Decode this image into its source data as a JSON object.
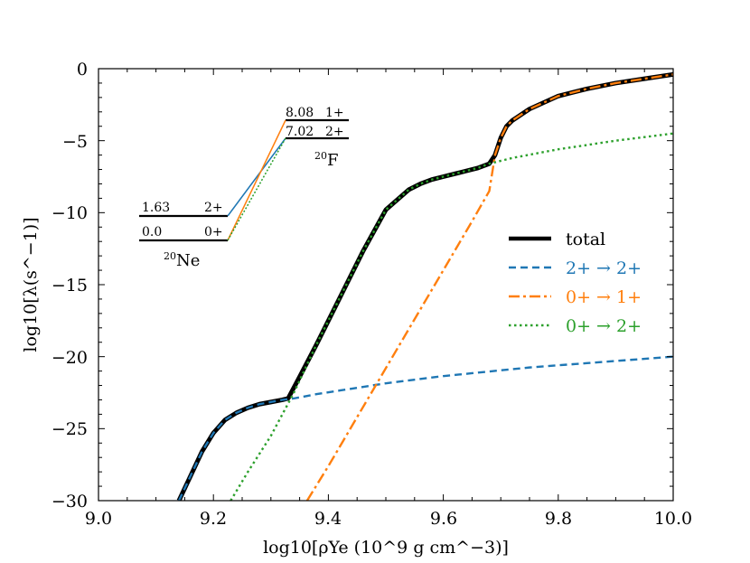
{
  "chart_data": {
    "type": "line",
    "xlabel": "log10[ρYe (10^9 g cm^−3)]",
    "ylabel": "log10[λ(s^−1)]",
    "xlim": [
      9.0,
      10.0
    ],
    "ylim": [
      -30,
      0
    ],
    "xticks": [
      "9.0",
      "9.2",
      "9.4",
      "9.6",
      "9.8",
      "10.0"
    ],
    "yticks": [
      "0",
      "−5",
      "−10",
      "−15",
      "−20",
      "−25",
      "−30"
    ],
    "grid": false,
    "legend_position": "center-right",
    "series": [
      {
        "name": "total",
        "color": "#000000",
        "style": "solid",
        "x": [
          9.14,
          9.16,
          9.18,
          9.2,
          9.22,
          9.24,
          9.26,
          9.28,
          9.3,
          9.32,
          9.33,
          9.35,
          9.38,
          9.42,
          9.46,
          9.5,
          9.54,
          9.56,
          9.58,
          9.6,
          9.62,
          9.64,
          9.66,
          9.68,
          9.69,
          9.7,
          9.71,
          9.72,
          9.75,
          9.8,
          9.85,
          9.9,
          9.95,
          10.0
        ],
        "y": [
          -30.0,
          -28.3,
          -26.6,
          -25.3,
          -24.4,
          -23.9,
          -23.55,
          -23.3,
          -23.15,
          -23.0,
          -22.9,
          -21.4,
          -19.1,
          -15.9,
          -12.7,
          -9.8,
          -8.4,
          -8.0,
          -7.7,
          -7.5,
          -7.3,
          -7.1,
          -6.9,
          -6.6,
          -6.0,
          -4.8,
          -4.0,
          -3.6,
          -2.8,
          -1.9,
          -1.4,
          -1.0,
          -0.7,
          -0.4
        ]
      },
      {
        "name": "2+ → 2+",
        "color": "#1f77b4",
        "style": "dashed",
        "x": [
          9.14,
          9.16,
          9.18,
          9.2,
          9.22,
          9.24,
          9.26,
          9.28,
          9.3,
          9.32,
          9.34,
          9.38,
          9.42,
          9.46,
          9.5,
          9.55,
          9.6,
          9.65,
          9.7,
          9.75,
          9.8,
          9.85,
          9.9,
          9.95,
          10.0
        ],
        "y": [
          -30.0,
          -28.3,
          -26.6,
          -25.3,
          -24.4,
          -23.9,
          -23.55,
          -23.3,
          -23.15,
          -23.0,
          -22.9,
          -22.6,
          -22.35,
          -22.1,
          -21.85,
          -21.6,
          -21.35,
          -21.15,
          -20.95,
          -20.75,
          -20.6,
          -20.45,
          -20.3,
          -20.15,
          -20.0
        ]
      },
      {
        "name": "0+ → 1+",
        "color": "#ff7f0e",
        "style": "dashdot",
        "x": [
          9.363,
          9.4,
          9.45,
          9.5,
          9.55,
          9.6,
          9.65,
          9.68,
          9.69,
          9.7,
          9.71,
          9.72,
          9.75,
          9.8,
          9.85,
          9.9,
          9.95,
          10.0
        ],
        "y": [
          -30.0,
          -27.6,
          -24.2,
          -20.8,
          -17.4,
          -14.0,
          -10.6,
          -8.5,
          -6.0,
          -4.8,
          -4.0,
          -3.6,
          -2.8,
          -1.9,
          -1.4,
          -1.0,
          -0.7,
          -0.4
        ]
      },
      {
        "name": "0+ → 2+",
        "color": "#2ca02c",
        "style": "dotted",
        "x": [
          9.23,
          9.26,
          9.3,
          9.34,
          9.38,
          9.42,
          9.46,
          9.5,
          9.54,
          9.56,
          9.58,
          9.6,
          9.62,
          9.64,
          9.66,
          9.68,
          9.72,
          9.76,
          9.8,
          9.85,
          9.9,
          9.95,
          10.0
        ],
        "y": [
          -30.0,
          -28.0,
          -25.5,
          -22.5,
          -19.1,
          -15.9,
          -12.7,
          -9.8,
          -8.4,
          -8.0,
          -7.7,
          -7.5,
          -7.3,
          -7.1,
          -6.9,
          -6.6,
          -6.2,
          -5.9,
          -5.6,
          -5.3,
          -5.0,
          -4.75,
          -4.5
        ]
      }
    ],
    "legend": [
      {
        "label": "total",
        "color": "#000000"
      },
      {
        "label": "2+ → 2+",
        "color": "#1f77b4"
      },
      {
        "label": "0+ → 1+",
        "color": "#ff7f0e"
      },
      {
        "label": "0+ → 2+",
        "color": "#2ca02c"
      }
    ],
    "level_scheme": {
      "parent": {
        "nucleus_mass": "20",
        "nucleus_symbol": "Ne",
        "levels": [
          {
            "energy": "1.63",
            "spin": "2+"
          },
          {
            "energy": "0.0",
            "spin": "0+"
          }
        ]
      },
      "daughter": {
        "nucleus_mass": "20",
        "nucleus_symbol": "F",
        "levels": [
          {
            "energy": "8.08",
            "spin": "1+"
          },
          {
            "energy": "7.02",
            "spin": "2+"
          }
        ]
      },
      "transitions": [
        {
          "from": "2+",
          "to": "2+",
          "color": "#1f77b4"
        },
        {
          "from": "0+",
          "to": "1+",
          "color": "#ff7f0e"
        },
        {
          "from": "0+",
          "to": "2+",
          "color": "#2ca02c"
        }
      ]
    }
  }
}
